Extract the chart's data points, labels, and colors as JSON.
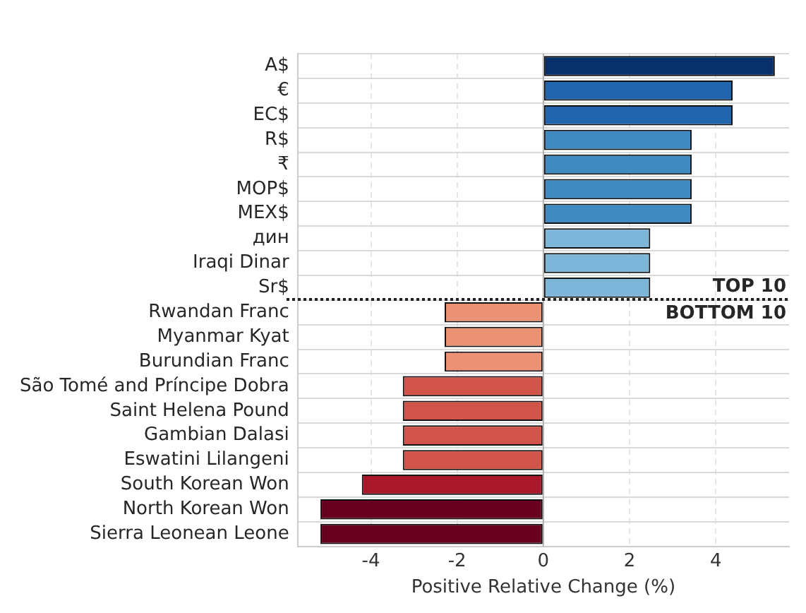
{
  "chart_data": {
    "type": "bar",
    "orientation": "horizontal",
    "xlabel": "Positive Relative Change (%)",
    "categories": [
      "A$",
      "€",
      "EC$",
      "R$",
      "₹",
      "MOP$",
      "MEX$",
      "дин",
      "Iraqi Dinar",
      "Sr$",
      "Rwandan Franc",
      "Myanmar Kyat",
      "Burundian Franc",
      "São Tomé and Príncipe Dobra",
      "Saint Helena Pound",
      "Gambian Dalasi",
      "Eswatini Lilangeni",
      "South Korean Won",
      "North Korean Won",
      "Sierra Leonean Leone"
    ],
    "values": [
      5.37,
      4.39,
      4.39,
      3.44,
      3.44,
      3.44,
      3.44,
      2.48,
      2.48,
      2.48,
      -2.29,
      -2.29,
      -2.29,
      -3.26,
      -3.26,
      -3.26,
      -3.26,
      -4.21,
      -5.17,
      -5.17
    ],
    "colors": [
      "#08306b",
      "#2166ac",
      "#2166ac",
      "#3f8bc1",
      "#3f8bc1",
      "#3f8bc1",
      "#3f8bc1",
      "#7db6d8",
      "#7db6d8",
      "#7db6d8",
      "#ec9274",
      "#ec9274",
      "#ec9274",
      "#d0544a",
      "#d0544a",
      "#d0544a",
      "#d0544a",
      "#a8172a",
      "#67001f",
      "#67001f"
    ],
    "xlim": [
      -5.7,
      5.7
    ],
    "xticks": [
      -4,
      -2,
      0,
      2,
      4
    ],
    "grid": true,
    "legend": false,
    "ref_lines": [
      {
        "axis": "x",
        "value": 0,
        "color": "#b0b0b0",
        "line_style": "solid"
      }
    ],
    "annotations": [
      "TOP 10",
      "BOTTOM 10"
    ]
  }
}
